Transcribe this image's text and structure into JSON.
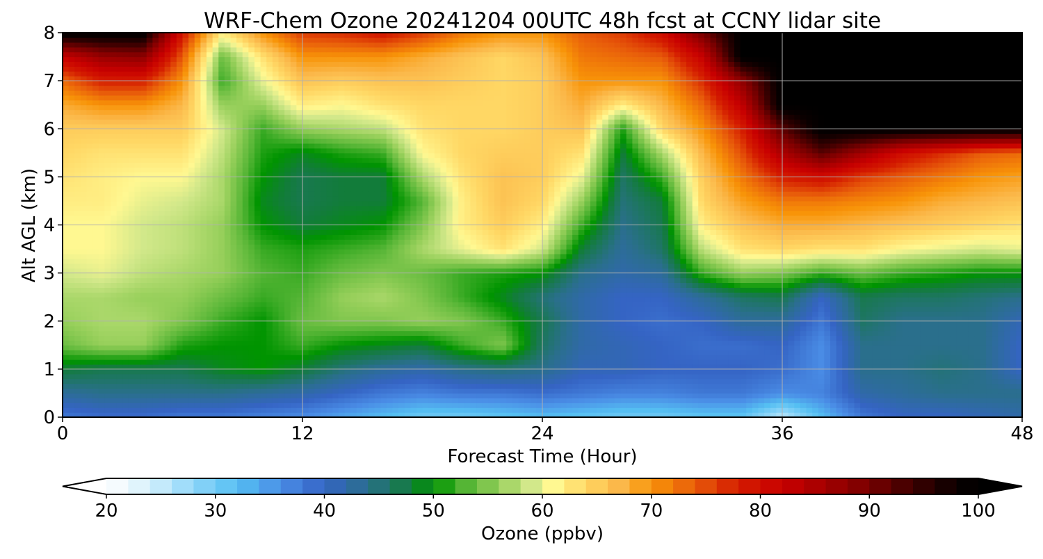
{
  "chart_data": {
    "type": "heatmap",
    "title": "WRF-Chem Ozone  20241204 00UTC 48h fcst at CCNY lidar site",
    "xlabel": "Forecast Time (Hour)",
    "ylabel": "Alt AGL (km)",
    "xlim": [
      0,
      48
    ],
    "ylim": [
      0,
      8
    ],
    "xticks": [
      0,
      12,
      24,
      36,
      48
    ],
    "yticks": [
      0,
      1,
      2,
      3,
      4,
      5,
      6,
      7,
      8
    ],
    "grid": true,
    "x": [
      0,
      2,
      4,
      6,
      8,
      10,
      12,
      14,
      16,
      18,
      20,
      22,
      24,
      26,
      28,
      30,
      32,
      34,
      36,
      38,
      40,
      42,
      44,
      46,
      48
    ],
    "y": [
      0,
      0.5,
      1,
      1.5,
      2,
      2.5,
      3,
      3.5,
      4,
      4.5,
      5,
      5.5,
      6,
      6.5,
      7,
      7.5,
      8
    ],
    "z": [
      [
        38,
        39,
        39,
        38,
        38,
        37,
        36,
        34,
        32,
        30,
        30,
        31,
        32,
        31,
        30,
        30,
        31,
        31,
        25,
        32,
        38,
        40,
        40,
        41,
        42
      ],
      [
        43,
        44,
        44,
        44,
        44,
        43,
        42,
        40,
        38,
        37,
        38,
        38,
        39,
        38,
        37,
        37,
        38,
        38,
        36,
        37,
        42,
        43,
        44,
        44,
        44
      ],
      [
        48,
        47,
        47,
        47,
        49,
        50,
        48,
        45,
        43,
        42,
        44,
        45,
        44,
        41,
        41,
        40,
        40,
        40,
        39,
        36,
        44,
        44,
        45,
        44,
        40
      ],
      [
        54,
        56,
        56,
        51,
        50,
        50,
        52,
        50,
        49,
        48,
        52,
        55,
        46,
        42,
        41,
        40,
        39,
        39,
        40,
        36,
        44,
        44,
        44,
        44,
        40
      ],
      [
        56,
        57,
        57,
        55,
        52,
        50,
        54,
        55,
        55,
        56,
        55,
        52,
        47,
        42,
        40,
        39,
        40,
        43,
        43,
        38,
        46,
        44,
        44,
        44,
        41
      ],
      [
        57,
        57,
        56,
        56,
        54,
        52,
        53,
        56,
        57,
        55,
        52,
        49,
        45,
        42,
        40,
        40,
        43,
        46,
        47,
        40,
        47,
        46,
        46,
        45,
        44
      ],
      [
        59,
        60,
        58,
        57,
        56,
        53,
        52,
        54,
        55,
        54,
        52,
        51,
        50,
        44,
        42,
        43,
        52,
        56,
        55,
        52,
        54,
        52,
        51,
        50,
        50
      ],
      [
        61,
        61,
        59,
        58,
        56,
        52,
        51,
        52,
        53,
        57,
        60,
        63,
        59,
        48,
        43,
        46,
        58,
        63,
        64,
        63,
        63,
        61,
        60,
        59,
        60
      ],
      [
        61,
        61,
        59,
        58,
        56,
        50,
        48,
        49,
        50,
        55,
        62,
        65,
        62,
        52,
        44,
        47,
        62,
        66,
        68,
        68,
        67,
        66,
        65,
        64,
        63
      ],
      [
        62,
        62,
        60,
        59,
        57,
        49,
        47,
        48,
        48,
        53,
        62,
        66,
        64,
        56,
        45,
        48,
        64,
        69,
        72,
        72,
        71,
        70,
        68,
        67,
        66
      ],
      [
        63,
        62,
        61,
        61,
        57,
        50,
        47,
        48,
        48,
        57,
        63,
        66,
        65,
        60,
        46,
        52,
        65,
        72,
        78,
        80,
        76,
        74,
        72,
        70,
        69
      ],
      [
        64,
        63,
        63,
        63,
        58,
        51,
        49,
        51,
        52,
        61,
        64,
        65,
        65,
        63,
        48,
        57,
        67,
        75,
        85,
        92,
        86,
        80,
        77,
        74,
        73
      ],
      [
        65,
        65,
        65,
        65,
        59,
        52,
        56,
        57,
        58,
        63,
        64,
        64,
        65,
        66,
        51,
        64,
        70,
        78,
        92,
        100,
        100,
        100,
        100,
        100,
        100
      ],
      [
        68,
        70,
        70,
        67,
        56,
        56,
        62,
        61,
        63,
        64,
        64,
        64,
        65,
        68,
        62,
        67,
        73,
        83,
        100,
        100,
        100,
        100,
        100,
        100,
        100
      ],
      [
        73,
        78,
        78,
        70,
        52,
        60,
        66,
        65,
        66,
        66,
        65,
        64,
        65,
        70,
        70,
        70,
        77,
        88,
        100,
        100,
        100,
        100,
        100,
        100,
        100
      ],
      [
        82,
        87,
        88,
        74,
        54,
        63,
        70,
        70,
        70,
        68,
        66,
        64,
        66,
        72,
        73,
        74,
        82,
        100,
        100,
        100,
        100,
        100,
        100,
        100,
        100
      ],
      [
        100,
        100,
        100,
        79,
        62,
        70,
        76,
        77,
        79,
        76,
        72,
        70,
        70,
        74,
        76,
        80,
        90,
        100,
        100,
        100,
        100,
        100,
        100,
        100,
        100
      ]
    ],
    "colorbar": {
      "label": "Ozone  (ppbv)",
      "min": 20,
      "max": 100,
      "ticks": [
        20,
        30,
        40,
        50,
        60,
        70,
        80,
        90,
        100
      ],
      "extend": "both",
      "colors": [
        {
          "v": 20,
          "c": "#ffffff"
        },
        {
          "v": 24,
          "c": "#d6f0fb"
        },
        {
          "v": 28,
          "c": "#8fd6f9"
        },
        {
          "v": 32,
          "c": "#55bff2"
        },
        {
          "v": 36,
          "c": "#4a8de6"
        },
        {
          "v": 40,
          "c": "#3564c4"
        },
        {
          "v": 44,
          "c": "#2a6f8c"
        },
        {
          "v": 48,
          "c": "#127c3a"
        },
        {
          "v": 50,
          "c": "#009400"
        },
        {
          "v": 53,
          "c": "#55b535"
        },
        {
          "v": 56,
          "c": "#96cf5a"
        },
        {
          "v": 59,
          "c": "#d2e88a"
        },
        {
          "v": 61,
          "c": "#fff891"
        },
        {
          "v": 64,
          "c": "#ffd764"
        },
        {
          "v": 67,
          "c": "#fbb84a"
        },
        {
          "v": 70,
          "c": "#f89408"
        },
        {
          "v": 74,
          "c": "#e85c0a"
        },
        {
          "v": 78,
          "c": "#d41c00"
        },
        {
          "v": 82,
          "c": "#c80000"
        },
        {
          "v": 86,
          "c": "#a30000"
        },
        {
          "v": 90,
          "c": "#780000"
        },
        {
          "v": 94,
          "c": "#3c0000"
        },
        {
          "v": 98,
          "c": "#0a0000"
        },
        {
          "v": 100,
          "c": "#000000"
        }
      ]
    }
  }
}
